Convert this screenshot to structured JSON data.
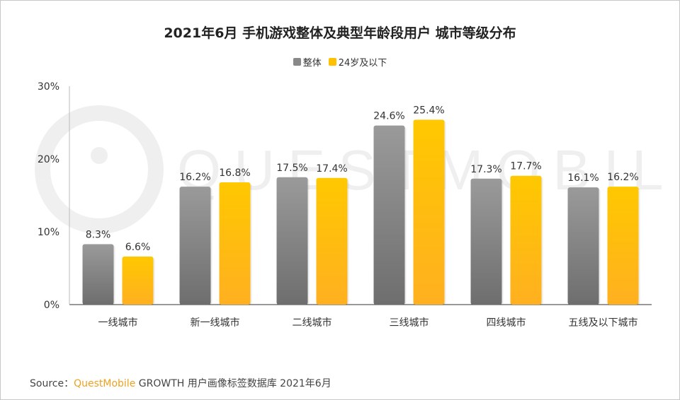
{
  "chart_data": {
    "type": "bar",
    "title": "2021年6月 手机游戏整体及典型年龄段用户 城市等级分布",
    "categories": [
      "一线城市",
      "新一线城市",
      "二线城市",
      "三线城市",
      "四线城市",
      "五线及以下城市"
    ],
    "series": [
      {
        "name": "整体",
        "values": [
          8.3,
          16.2,
          17.5,
          24.6,
          17.3,
          16.1
        ],
        "labels": [
          "8.3%",
          "16.2%",
          "17.5%",
          "24.6%",
          "17.3%",
          "16.1%"
        ],
        "color": "#8a8a8a"
      },
      {
        "name": "24岁及以下",
        "values": [
          6.6,
          16.8,
          17.4,
          25.4,
          17.7,
          16.2
        ],
        "labels": [
          "6.6%",
          "16.8%",
          "17.4%",
          "25.4%",
          "17.7%",
          "16.2%"
        ],
        "color": "#ffc000"
      }
    ],
    "ylim": [
      0,
      30
    ],
    "yticks": [
      "0%",
      "10%",
      "20%",
      "30%"
    ],
    "ytick_values": [
      0,
      10,
      20,
      30
    ],
    "grid": false,
    "legend_position": "top-center",
    "unit": "%"
  },
  "watermark": "QUESTMOBILE",
  "source": {
    "prefix": "Source：",
    "brand": "QuestMobile",
    "text": " GROWTH 用户画像标签数据库 2021年6月"
  }
}
